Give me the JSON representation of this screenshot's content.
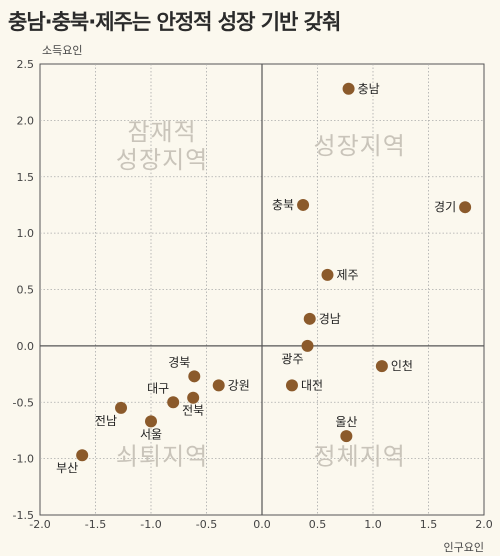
{
  "title": "충남·충북·제주는 안정적 성장 기반 갖춰",
  "chart_data": {
    "type": "scatter",
    "xlabel": "인구요인",
    "ylabel": "소득요인",
    "xlim": [
      -2.0,
      2.0
    ],
    "ylim": [
      -1.5,
      2.5
    ],
    "x_ticks": [
      "-2.0",
      "-1.5",
      "-1.0",
      "-0.5",
      "0.0",
      "0.5",
      "1.0",
      "1.5",
      "2.0"
    ],
    "y_ticks": [
      "2.5",
      "2.0",
      "1.5",
      "1.0",
      "0.5",
      "0.0",
      "-0.5",
      "-1.0",
      "-1.5"
    ],
    "grid": true,
    "marker_color": "#8b5a2b",
    "quadrant_labels": [
      {
        "text": [
          "잠재적",
          "성장지역"
        ],
        "quadrant": "top-left"
      },
      {
        "text": [
          "성장지역"
        ],
        "quadrant": "top-right"
      },
      {
        "text": [
          "쇠퇴지역"
        ],
        "quadrant": "bottom-left"
      },
      {
        "text": [
          "정체지역"
        ],
        "quadrant": "bottom-right"
      }
    ],
    "points": [
      {
        "label": "충남",
        "x": 0.78,
        "y": 2.28,
        "label_pos": "right"
      },
      {
        "label": "충북",
        "x": 0.37,
        "y": 1.25,
        "label_pos": "left"
      },
      {
        "label": "경기",
        "x": 1.83,
        "y": 1.23,
        "label_pos": "left"
      },
      {
        "label": "제주",
        "x": 0.59,
        "y": 0.63,
        "label_pos": "right"
      },
      {
        "label": "경남",
        "x": 0.43,
        "y": 0.24,
        "label_pos": "right"
      },
      {
        "label": "광주",
        "x": 0.41,
        "y": 0.0,
        "label_pos": "below-left"
      },
      {
        "label": "인천",
        "x": 1.08,
        "y": -0.18,
        "label_pos": "right"
      },
      {
        "label": "대전",
        "x": 0.27,
        "y": -0.35,
        "label_pos": "right"
      },
      {
        "label": "경북",
        "x": -0.61,
        "y": -0.27,
        "label_pos": "above-left"
      },
      {
        "label": "강원",
        "x": -0.39,
        "y": -0.35,
        "label_pos": "right"
      },
      {
        "label": "대구",
        "x": -0.8,
        "y": -0.5,
        "label_pos": "above-left"
      },
      {
        "label": "전북",
        "x": -0.62,
        "y": -0.46,
        "label_pos": "below"
      },
      {
        "label": "전남",
        "x": -1.27,
        "y": -0.55,
        "label_pos": "below-left"
      },
      {
        "label": "서울",
        "x": -1.0,
        "y": -0.67,
        "label_pos": "below"
      },
      {
        "label": "울산",
        "x": 0.76,
        "y": -0.8,
        "label_pos": "above"
      },
      {
        "label": "부산",
        "x": -1.62,
        "y": -0.97,
        "label_pos": "below-left"
      }
    ]
  }
}
